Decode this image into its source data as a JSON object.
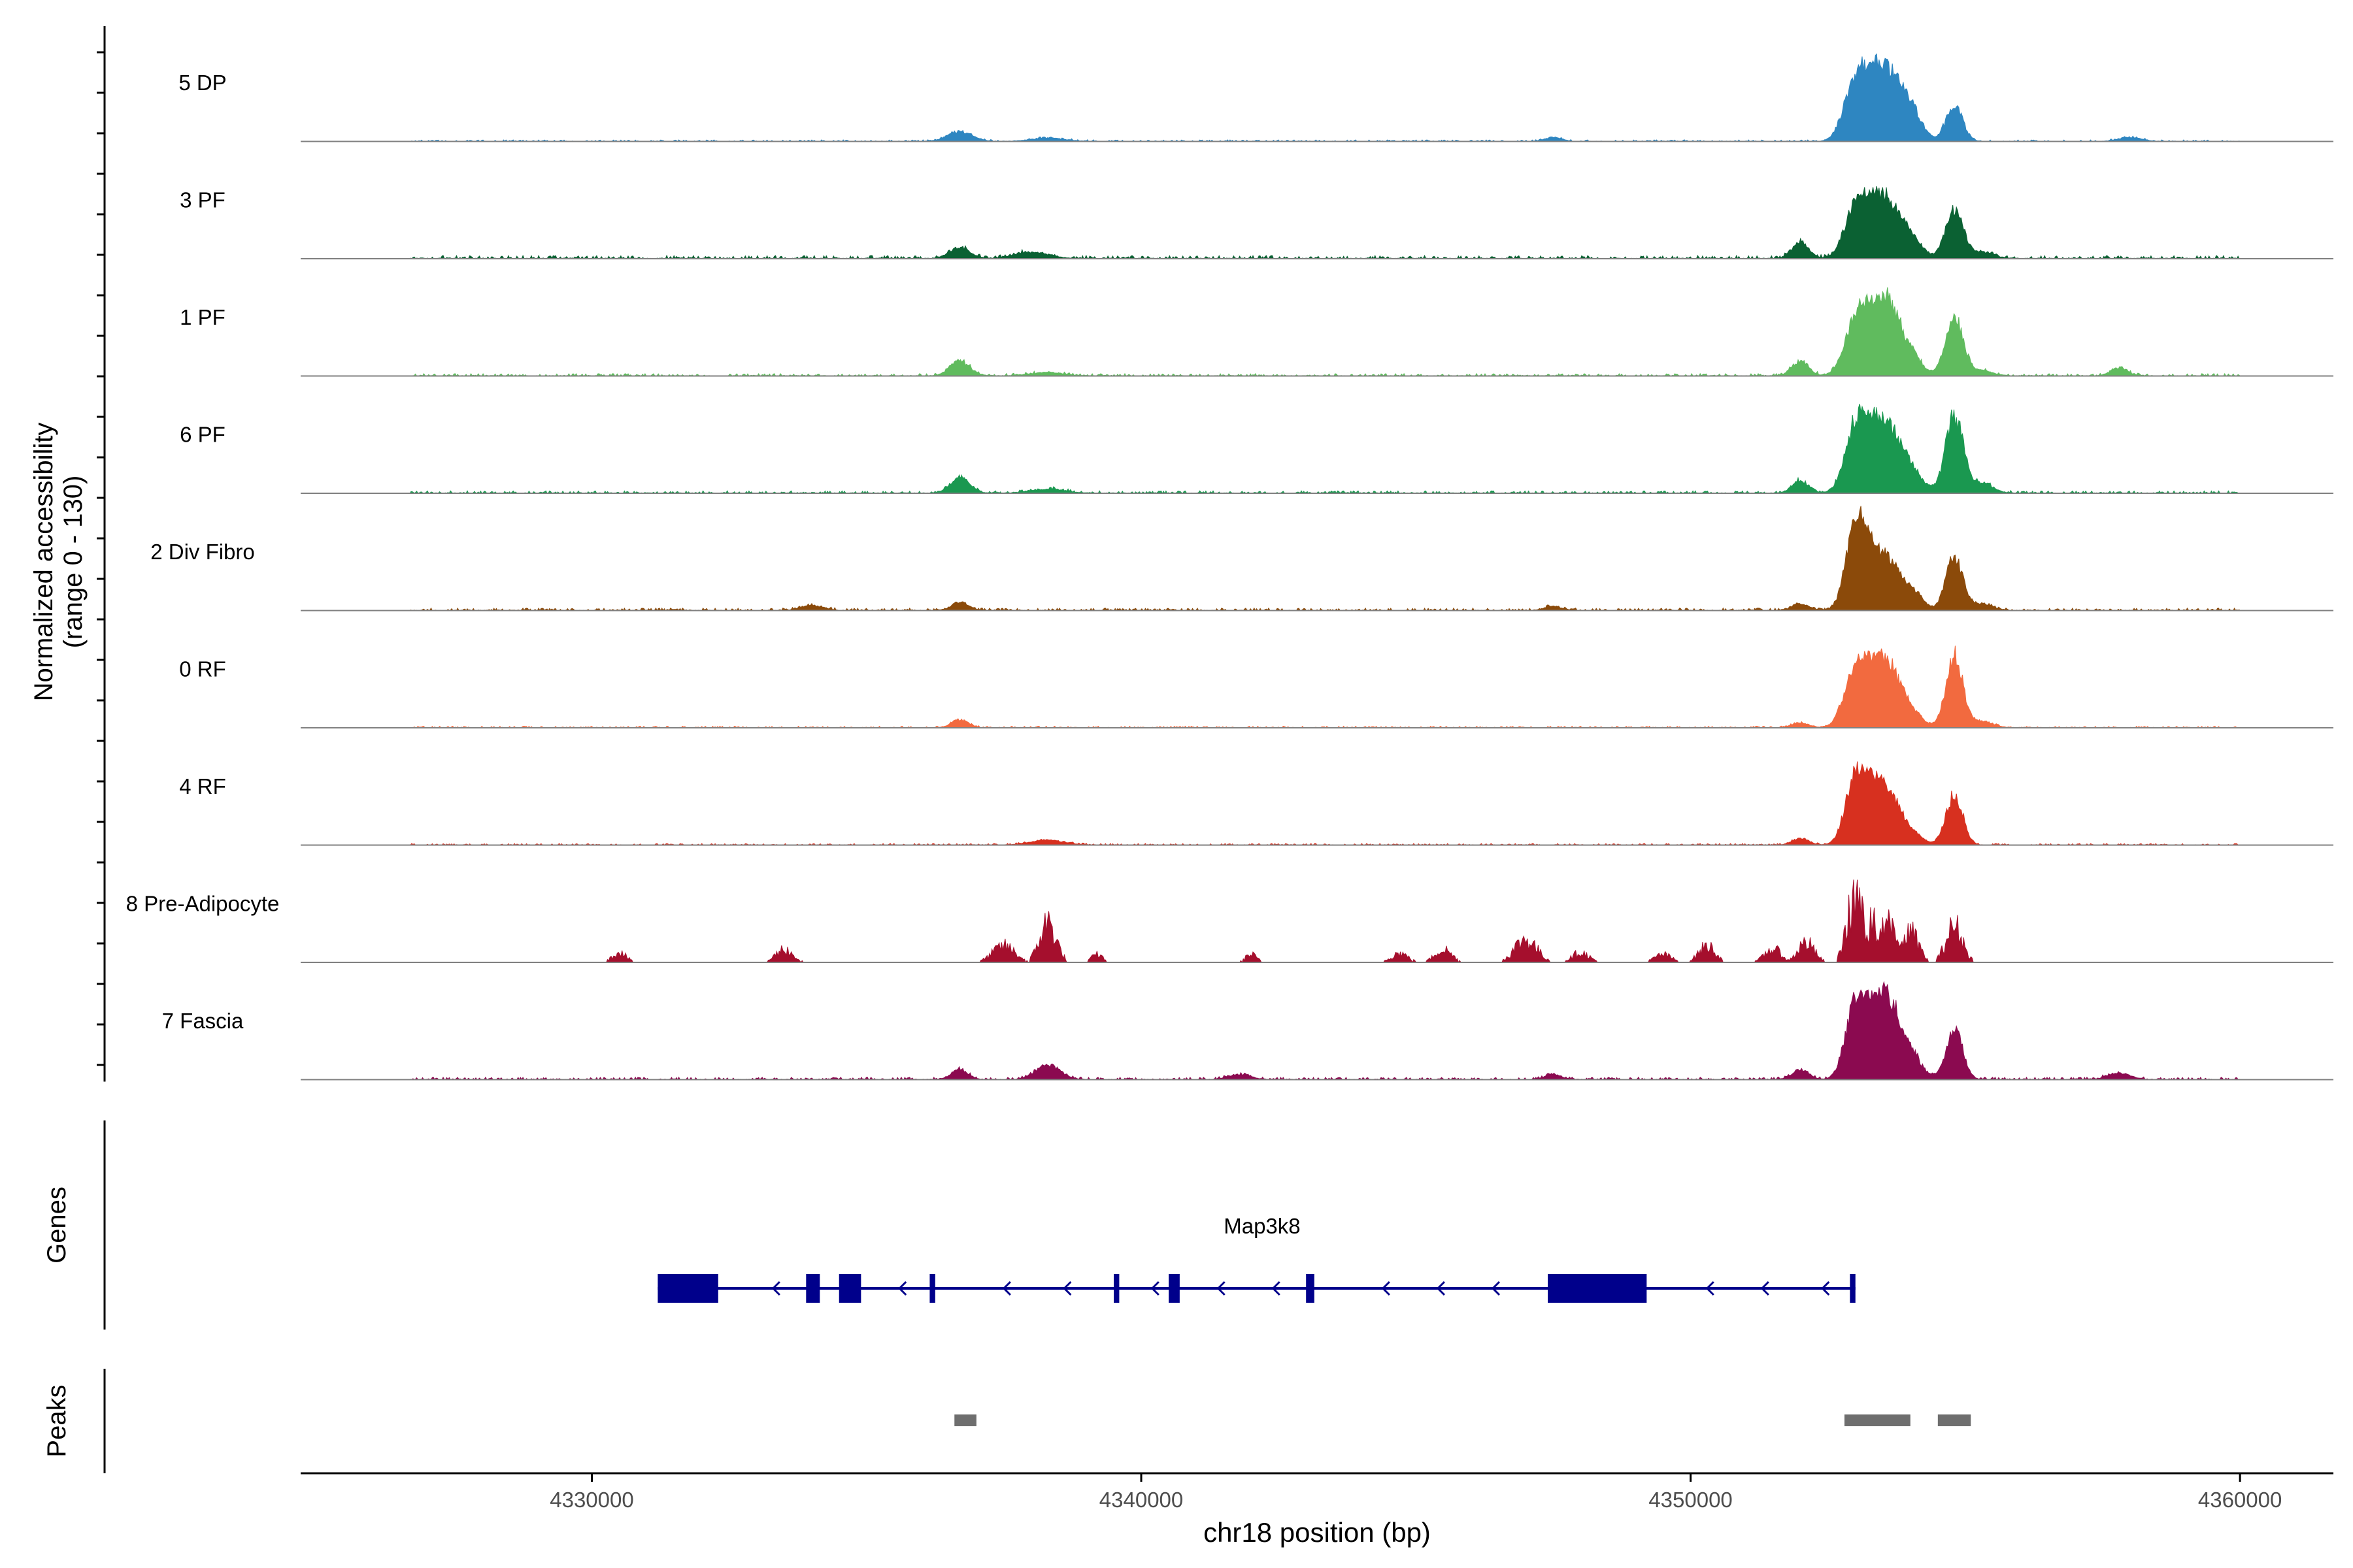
{
  "chart_data": {
    "type": "area",
    "title": "",
    "xlabel": "chr18 position (bp)",
    "ylabel": "Normalized accessibility",
    "ylabel_sub": "(range 0 - 130)",
    "xlim": [
      4324700,
      4361700
    ],
    "ylim": [
      0,
      130
    ],
    "x_ticks": [
      4330000,
      4340000,
      4350000,
      4360000
    ],
    "x_tick_labels": [
      "4330000",
      "4340000",
      "4350000",
      "4360000"
    ],
    "region_start": 4326700,
    "region_end": 4360000,
    "baseline_color": "#808080",
    "tracks": [
      {
        "name": "5 DP",
        "color": "#2E86C1",
        "base": 2,
        "mode": "smooth",
        "peaks": [
          [
            4336700,
            12,
            220
          ],
          [
            4338300,
            4,
            300
          ],
          [
            4347500,
            5,
            150
          ],
          [
            4353000,
            75,
            200
          ],
          [
            4353300,
            45,
            180
          ],
          [
            4353600,
            76,
            210
          ],
          [
            4354000,
            40,
            200
          ],
          [
            4354800,
            45,
            150
          ],
          [
            4358000,
            5,
            200
          ]
        ]
      },
      {
        "name": "3 PF",
        "color": "#0B6133",
        "base": 4,
        "mode": "smooth",
        "peaks": [
          [
            4336700,
            14,
            180
          ],
          [
            4338000,
            8,
            300
          ],
          [
            4352000,
            20,
            150
          ],
          [
            4353000,
            60,
            200
          ],
          [
            4353300,
            40,
            180
          ],
          [
            4353600,
            62,
            210
          ],
          [
            4354000,
            25,
            200
          ],
          [
            4354800,
            60,
            160
          ],
          [
            4355300,
            8,
            200
          ]
        ]
      },
      {
        "name": "1 PF",
        "color": "#60BB5E",
        "base": 3,
        "mode": "smooth",
        "peaks": [
          [
            4336700,
            18,
            180
          ],
          [
            4338300,
            4,
            300
          ],
          [
            4352000,
            18,
            150
          ],
          [
            4353000,
            65,
            200
          ],
          [
            4353300,
            45,
            180
          ],
          [
            4353600,
            82,
            210
          ],
          [
            4354000,
            25,
            200
          ],
          [
            4354800,
            75,
            160
          ],
          [
            4355300,
            6,
            200
          ],
          [
            4357800,
            10,
            150
          ]
        ]
      },
      {
        "name": "6 PF",
        "color": "#1A9850",
        "base": 3,
        "mode": "smooth",
        "peaks": [
          [
            4336700,
            20,
            170
          ],
          [
            4338300,
            5,
            300
          ],
          [
            4352000,
            15,
            150
          ],
          [
            4353000,
            80,
            190
          ],
          [
            4353300,
            50,
            180
          ],
          [
            4353600,
            70,
            210
          ],
          [
            4354000,
            30,
            200
          ],
          [
            4354800,
            96,
            160
          ],
          [
            4355300,
            12,
            200
          ]
        ]
      },
      {
        "name": "2 Div Fibro",
        "color": "#8B4A0A",
        "base": 3,
        "mode": "smooth",
        "peaks": [
          [
            4336700,
            10,
            150
          ],
          [
            4334000,
            6,
            200
          ],
          [
            4347500,
            5,
            150
          ],
          [
            4352000,
            8,
            150
          ],
          [
            4353000,
            108,
            170
          ],
          [
            4353300,
            52,
            160
          ],
          [
            4353600,
            54,
            190
          ],
          [
            4354000,
            25,
            200
          ],
          [
            4354800,
            66,
            150
          ],
          [
            4355300,
            8,
            200
          ]
        ]
      },
      {
        "name": "0 RF",
        "color": "#F26A3F",
        "base": 2,
        "mode": "smooth",
        "peaks": [
          [
            4336700,
            10,
            150
          ],
          [
            4352000,
            6,
            150
          ],
          [
            4353000,
            70,
            200
          ],
          [
            4353300,
            45,
            180
          ],
          [
            4353600,
            70,
            210
          ],
          [
            4354000,
            20,
            200
          ],
          [
            4354800,
            90,
            150
          ],
          [
            4355300,
            8,
            200
          ]
        ]
      },
      {
        "name": "4 RF",
        "color": "#D7301F",
        "base": 2,
        "mode": "smooth",
        "peaks": [
          [
            4338300,
            6,
            300
          ],
          [
            4352000,
            8,
            150
          ],
          [
            4353000,
            82,
            180
          ],
          [
            4353300,
            45,
            170
          ],
          [
            4353600,
            62,
            200
          ],
          [
            4354000,
            15,
            200
          ],
          [
            4354800,
            62,
            150
          ]
        ]
      },
      {
        "name": "8 Pre-Adipocyte",
        "color": "#A50F2D",
        "base": 0,
        "mode": "sparse",
        "peaks": [
          [
            4330500,
            16,
            120
          ],
          [
            4333500,
            20,
            150
          ],
          [
            4337500,
            25,
            200
          ],
          [
            4338300,
            60,
            150
          ],
          [
            4339200,
            12,
            100
          ],
          [
            4342000,
            12,
            100
          ],
          [
            4344700,
            14,
            150
          ],
          [
            4345500,
            20,
            150
          ],
          [
            4347000,
            35,
            200
          ],
          [
            4348000,
            15,
            150
          ],
          [
            4349500,
            12,
            150
          ],
          [
            4350300,
            25,
            150
          ],
          [
            4351500,
            20,
            150
          ],
          [
            4352100,
            30,
            150
          ],
          [
            4353000,
            98,
            150
          ],
          [
            4353300,
            60,
            150
          ],
          [
            4353600,
            60,
            150
          ],
          [
            4354000,
            45,
            150
          ],
          [
            4354800,
            55,
            150
          ]
        ]
      },
      {
        "name": "7 Fascia",
        "color": "#8B0A50",
        "base": 3,
        "mode": "smooth",
        "peaks": [
          [
            4336700,
            12,
            150
          ],
          [
            4338300,
            18,
            220
          ],
          [
            4341800,
            6,
            200
          ],
          [
            4347500,
            6,
            150
          ],
          [
            4352000,
            12,
            150
          ],
          [
            4353000,
            92,
            180
          ],
          [
            4353300,
            52,
            170
          ],
          [
            4353600,
            92,
            200
          ],
          [
            4354000,
            30,
            200
          ],
          [
            4354800,
            62,
            150
          ],
          [
            4357800,
            8,
            200
          ]
        ]
      }
    ],
    "genes": {
      "label": "Genes",
      "names": [
        "Map3k8"
      ],
      "name_position": 4342200,
      "strand": "-",
      "color": "#00008B",
      "span": [
        4331200,
        4353000
      ],
      "exons": [
        [
          4331200,
          4332300
        ],
        [
          4333900,
          4334150
        ],
        [
          4334500,
          4334900
        ],
        [
          4336150,
          4336250
        ],
        [
          4339500,
          4339600
        ],
        [
          4340500,
          4340700
        ],
        [
          4343000,
          4343150
        ],
        [
          4347400,
          4349200
        ],
        [
          4352900,
          4353000
        ]
      ],
      "arrows": [
        4333300,
        4335600,
        4337500,
        4338600,
        4340200,
        4341400,
        4342400,
        4344400,
        4345400,
        4346400,
        4350300,
        4351300,
        4352400
      ]
    },
    "peaks_track": {
      "label": "Peaks",
      "color": "#6E6E6E",
      "regions": [
        [
          4336600,
          4337000
        ],
        [
          4352800,
          4354000
        ],
        [
          4354500,
          4355100
        ]
      ]
    }
  }
}
